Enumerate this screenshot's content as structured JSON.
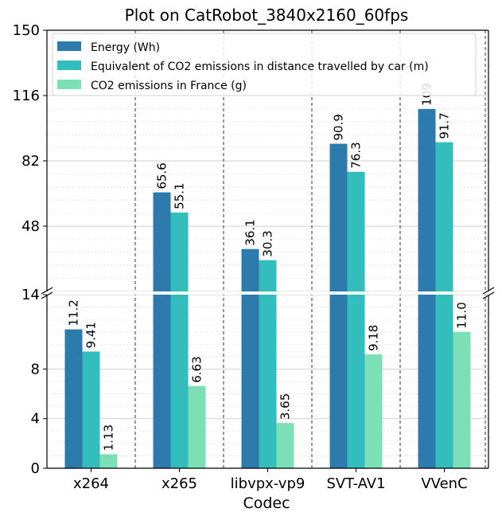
{
  "chart_data": {
    "type": "bar",
    "title": "Plot on CatRobot_3840x2160_60fps",
    "xlabel": "Codec",
    "ylabel": "",
    "categories": [
      "x264",
      "x265",
      "libvpx-vp9",
      "SVT-AV1",
      "VVenC"
    ],
    "series": [
      {
        "name": "Energy (Wh)",
        "color": "#2c7bac",
        "values": [
          11.2,
          65.6,
          36.1,
          90.9,
          109
        ],
        "labels": [
          "11.2",
          "65.6",
          "36.1",
          "90.9",
          "109"
        ]
      },
      {
        "name": "Equivalent of CO2 emissions in distance travelled by car (m)",
        "color": "#33bdbd",
        "values": [
          9.41,
          55.1,
          30.3,
          76.3,
          91.7
        ],
        "labels": [
          "9.41",
          "55.1",
          "30.3",
          "76.3",
          "91.7"
        ]
      },
      {
        "name": "CO2 emissions in France (g)",
        "color": "#7ddfb5",
        "values": [
          1.13,
          6.63,
          3.65,
          9.18,
          11.0
        ],
        "labels": [
          "1.13",
          "6.63",
          "3.65",
          "9.18",
          "11.0"
        ]
      }
    ],
    "axis": {
      "broken": true,
      "lower_range": [
        0,
        14
      ],
      "upper_range": [
        14,
        150
      ],
      "lower_ticks": [
        "0",
        "4",
        "8",
        "14"
      ],
      "upper_ticks": [
        "48",
        "82",
        "116",
        "150"
      ]
    },
    "grid": true,
    "legend": "top-left"
  }
}
